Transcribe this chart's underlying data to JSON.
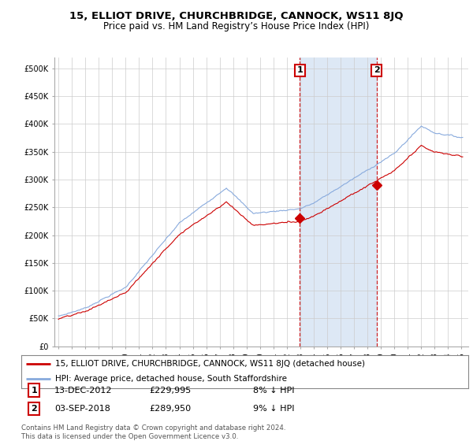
{
  "title": "15, ELLIOT DRIVE, CHURCHBRIDGE, CANNOCK, WS11 8JQ",
  "subtitle": "Price paid vs. HM Land Registry’s House Price Index (HPI)",
  "ylim": [
    0,
    520000
  ],
  "yticks": [
    0,
    50000,
    100000,
    150000,
    200000,
    250000,
    300000,
    350000,
    400000,
    450000,
    500000
  ],
  "ytick_labels": [
    "£0",
    "£50K",
    "£100K",
    "£150K",
    "£200K",
    "£250K",
    "£300K",
    "£350K",
    "£400K",
    "£450K",
    "£500K"
  ],
  "xlim_min": 1994.7,
  "xlim_max": 2025.5,
  "sale1_date": 2012.96,
  "sale1_price": 229995,
  "sale1_label": "1",
  "sale1_date_str": "13-DEC-2012",
  "sale1_price_str": "£229,995",
  "sale1_pct": "8% ↓ HPI",
  "sale2_date": 2018.67,
  "sale2_price": 289950,
  "sale2_label": "2",
  "sale2_date_str": "03-SEP-2018",
  "sale2_price_str": "£289,950",
  "sale2_pct": "9% ↓ HPI",
  "hpi_color": "#88aadd",
  "property_color": "#cc0000",
  "shade_color": "#dde8f5",
  "background_color": "#ffffff",
  "grid_color": "#cccccc",
  "legend_label_property": "15, ELLIOT DRIVE, CHURCHBRIDGE, CANNOCK, WS11 8JQ (detached house)",
  "legend_label_hpi": "HPI: Average price, detached house, South Staffordshire",
  "footer_text": "Contains HM Land Registry data © Crown copyright and database right 2024.\nThis data is licensed under the Open Government Licence v3.0.",
  "title_fontsize": 9.5,
  "subtitle_fontsize": 8.5,
  "axis_fontsize": 7,
  "legend_fontsize": 7.5
}
